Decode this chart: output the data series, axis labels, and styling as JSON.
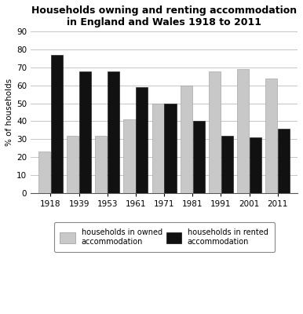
{
  "title": "Households owning and renting accommodation\nin England and Wales 1918 to 2011",
  "years": [
    "1918",
    "1939",
    "1953",
    "1961",
    "1971",
    "1981",
    "1991",
    "2001",
    "2011"
  ],
  "owned": [
    23,
    32,
    32,
    41,
    50,
    60,
    68,
    69,
    64
  ],
  "rented": [
    77,
    68,
    68,
    59,
    50,
    40,
    32,
    31,
    36
  ],
  "owned_color": "#c8c8c8",
  "rented_color": "#111111",
  "ylabel": "% of households",
  "ylim": [
    0,
    90
  ],
  "yticks": [
    0,
    10,
    20,
    30,
    40,
    50,
    60,
    70,
    80,
    90
  ],
  "bar_width": 0.42,
  "bar_gap": 0.02,
  "legend_owned": "households in owned\naccommodation",
  "legend_rented": "households in rented\naccommodation",
  "title_fontsize": 9.0,
  "axis_fontsize": 7.5,
  "legend_fontsize": 7.0,
  "background_color": "#ffffff",
  "grid_color": "#bbbbbb"
}
